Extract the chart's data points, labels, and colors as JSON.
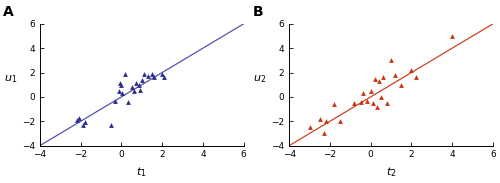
{
  "panel_A": {
    "label": "A",
    "xlabel": "$t_1$",
    "ylabel": "$u_1$",
    "xlim": [
      -4,
      6
    ],
    "ylim": [
      -4,
      6
    ],
    "xticks": [
      -4,
      -2,
      0,
      2,
      4,
      6
    ],
    "yticks": [
      -4,
      -2,
      0,
      2,
      4,
      6
    ],
    "line_color": "#5555aa",
    "marker_color": "#2b2b8f",
    "scatter_x": [
      -2.1,
      -2.2,
      -1.8,
      -1.9,
      -0.3,
      -0.1,
      0.05,
      -0.05,
      0.3,
      0.6,
      0.5,
      0.7,
      0.9,
      0.85,
      1.0,
      1.1,
      1.3,
      1.5,
      1.6,
      2.0,
      2.1,
      0.0,
      0.2,
      -0.5
    ],
    "scatter_y": [
      -1.7,
      -1.9,
      -2.1,
      -2.3,
      -0.3,
      0.5,
      0.3,
      1.1,
      -0.4,
      0.5,
      0.8,
      1.1,
      0.6,
      1.0,
      1.4,
      1.85,
      1.7,
      1.9,
      1.6,
      1.85,
      1.6,
      1.0,
      1.9,
      -2.3
    ]
  },
  "panel_B": {
    "label": "B",
    "xlabel": "$t_2$",
    "ylabel": "$u_2$",
    "xlim": [
      -4,
      6
    ],
    "ylim": [
      -4,
      6
    ],
    "xticks": [
      -4,
      -2,
      0,
      2,
      4,
      6
    ],
    "yticks": [
      -4,
      -2,
      0,
      2,
      4,
      6
    ],
    "line_color": "#cc4422",
    "marker_color": "#cc3311",
    "scatter_x": [
      -3.0,
      -2.5,
      -2.3,
      -2.2,
      -1.8,
      -0.8,
      -0.5,
      -0.4,
      -0.2,
      0.0,
      0.2,
      0.4,
      0.5,
      0.6,
      0.8,
      1.0,
      1.2,
      1.5,
      2.0,
      2.2,
      4.0,
      -1.5,
      0.1,
      0.3
    ],
    "scatter_y": [
      -2.5,
      -1.8,
      -3.0,
      -2.0,
      -0.6,
      -0.5,
      -0.4,
      0.3,
      -0.3,
      0.5,
      1.5,
      1.3,
      0.0,
      1.6,
      -0.5,
      3.0,
      1.8,
      1.0,
      2.2,
      1.6,
      5.0,
      -2.0,
      -0.5,
      -0.8
    ]
  },
  "figsize": [
    5.0,
    1.83
  ],
  "dpi": 100
}
